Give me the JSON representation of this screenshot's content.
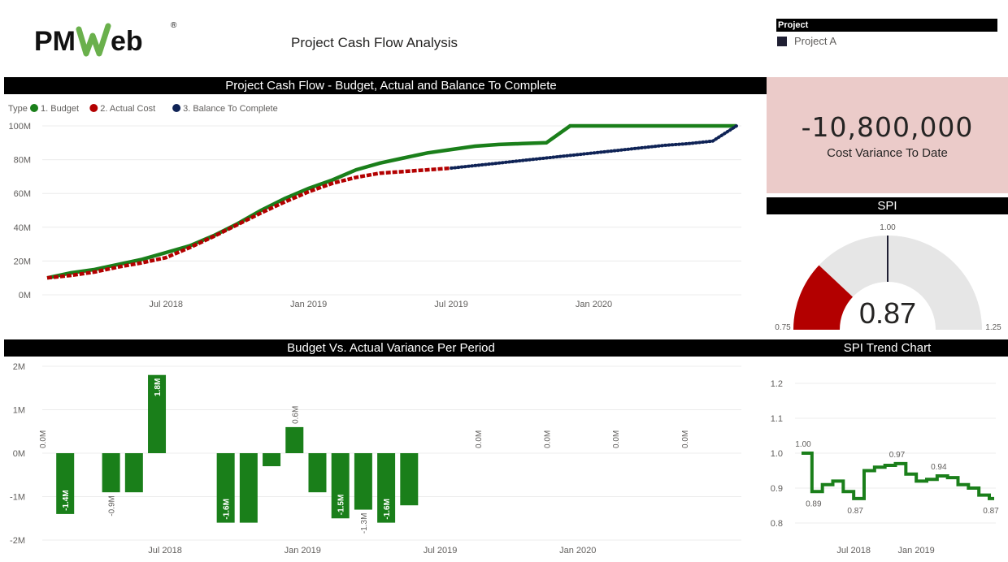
{
  "header": {
    "logo_text": "PMWeb",
    "logo_registered": "®",
    "title": "Project Cash Flow Analysis"
  },
  "slicer": {
    "heading": "Project",
    "items": [
      {
        "label": "Project A",
        "checked": true
      }
    ]
  },
  "kpi": {
    "value": "-10,800,000",
    "label": "Cost Variance To Date",
    "background": "#ebcbc9"
  },
  "colors": {
    "budget": "#1a7f1a",
    "actual": "#b30000",
    "balance": "#0f2356",
    "bar": "#1a7f1a",
    "gauge_fill": "#b30000",
    "gauge_track": "#e6e6e6"
  },
  "panels": {
    "cashflow_title": "Project Cash Flow - Budget, Actual and Balance To Complete",
    "variance_title": "Budget Vs. Actual Variance Per Period",
    "spi_title": "SPI",
    "spi_trend_title": "SPI Trend Chart"
  },
  "chart_data": [
    {
      "id": "cashflow",
      "type": "line",
      "title": "Project Cash Flow - Budget, Actual and Balance To Complete",
      "legend_title": "Type",
      "legend_position": "top-left",
      "x_ticks": [
        "Jul 2018",
        "Jan 2019",
        "Jul 2019",
        "Jan 2020"
      ],
      "x_tick_index": [
        5,
        11,
        17,
        23
      ],
      "y_ticks": [
        "0M",
        "20M",
        "40M",
        "60M",
        "80M",
        "100M"
      ],
      "ylim": [
        0,
        100
      ],
      "grid": true,
      "series": [
        {
          "name": "1. Budget",
          "style": "solid",
          "x": [
            0,
            1,
            2,
            3,
            4,
            5,
            6,
            7,
            8,
            9,
            10,
            11,
            12,
            13,
            14,
            15,
            16,
            17,
            18,
            19,
            20,
            21,
            22,
            23,
            24,
            25,
            26,
            27,
            28,
            29
          ],
          "values": [
            10,
            13,
            15,
            18,
            21,
            25,
            29,
            35,
            42,
            50,
            57,
            63,
            68,
            74,
            78,
            81,
            84,
            86,
            88,
            89,
            89.5,
            90,
            100,
            100,
            100,
            100,
            100,
            100,
            100,
            100
          ]
        },
        {
          "name": "2. Actual Cost",
          "style": "dashed",
          "x": [
            0,
            1,
            2,
            3,
            4,
            5,
            6,
            7,
            8,
            9,
            10,
            11,
            12,
            13,
            14,
            15,
            16,
            17
          ],
          "values": [
            10,
            11.5,
            13.5,
            16.5,
            19,
            22,
            28,
            34.5,
            41.5,
            48.5,
            55,
            61,
            66,
            69.5,
            72,
            73,
            74,
            75
          ]
        },
        {
          "name": "3. Balance To Complete",
          "style": "dotted",
          "x": [
            17,
            18,
            19,
            20,
            21,
            22,
            23,
            24,
            25,
            26,
            27,
            28,
            29
          ],
          "values": [
            75,
            76.5,
            78,
            79.5,
            81,
            82.5,
            84,
            85.5,
            87,
            88.5,
            89.5,
            91,
            100
          ]
        }
      ]
    },
    {
      "id": "variance",
      "type": "bar",
      "title": "Budget Vs. Actual Variance Per Period",
      "x_ticks": [
        "Jul 2018",
        "Jan 2019",
        "Jul 2019",
        "Jan 2020"
      ],
      "x_tick_index": [
        5,
        11,
        17,
        23
      ],
      "y_ticks": [
        "-2M",
        "-1M",
        "0M",
        "1M",
        "2M"
      ],
      "ylim": [
        -2,
        2
      ],
      "grid": true,
      "periods": [
        0,
        1,
        2,
        3,
        4,
        5,
        6,
        7,
        8,
        9,
        10,
        11,
        12,
        13,
        14,
        15,
        16,
        17,
        19,
        22,
        25,
        28
      ],
      "values": [
        0,
        -1.4,
        0,
        -0.9,
        -0.9,
        1.8,
        0,
        0,
        -1.6,
        -1.6,
        -0.3,
        0.6,
        -0.9,
        -1.5,
        -1.3,
        -1.6,
        -1.2,
        0,
        0,
        0,
        0,
        0
      ],
      "labels": [
        "0.0M",
        "-1.4M",
        "",
        "-0.9M",
        "",
        "1.8M",
        "",
        "",
        "-1.6M",
        "",
        "",
        "0.6M",
        "",
        "-1.5M",
        "-1.3M",
        "-1.6M",
        "",
        "",
        "0.0M",
        "0.0M",
        "0.0M",
        "0.0M"
      ]
    },
    {
      "id": "spi_gauge",
      "type": "gauge",
      "title": "SPI",
      "value": 0.87,
      "display_value": "0.87",
      "min": 0.75,
      "max": 1.25,
      "target": 1.0,
      "min_label": "0.75",
      "max_label": "1.25",
      "target_label": "1.00"
    },
    {
      "id": "spi_trend",
      "type": "line",
      "title": "SPI Trend Chart",
      "step": true,
      "x_ticks": [
        "Jul 2018",
        "Jan 2019"
      ],
      "x_tick_index": [
        5,
        11
      ],
      "y_ticks": [
        "0.8",
        "0.9",
        "1.0",
        "1.1",
        "1.2"
      ],
      "ylim": [
        0.8,
        1.2
      ],
      "grid": true,
      "x": [
        0,
        1,
        2,
        3,
        4,
        5,
        6,
        7,
        8,
        9,
        10,
        11,
        12,
        13,
        14,
        15,
        16,
        17,
        18
      ],
      "values": [
        1.0,
        0.89,
        0.91,
        0.92,
        0.89,
        0.87,
        0.95,
        0.96,
        0.965,
        0.97,
        0.94,
        0.92,
        0.925,
        0.935,
        0.93,
        0.91,
        0.9,
        0.88,
        0.87
      ],
      "data_labels": {
        "0": "1.00",
        "1": "0.89",
        "5": "0.87",
        "9": "0.97",
        "13": "0.94",
        "18": "0.87"
      }
    }
  ]
}
